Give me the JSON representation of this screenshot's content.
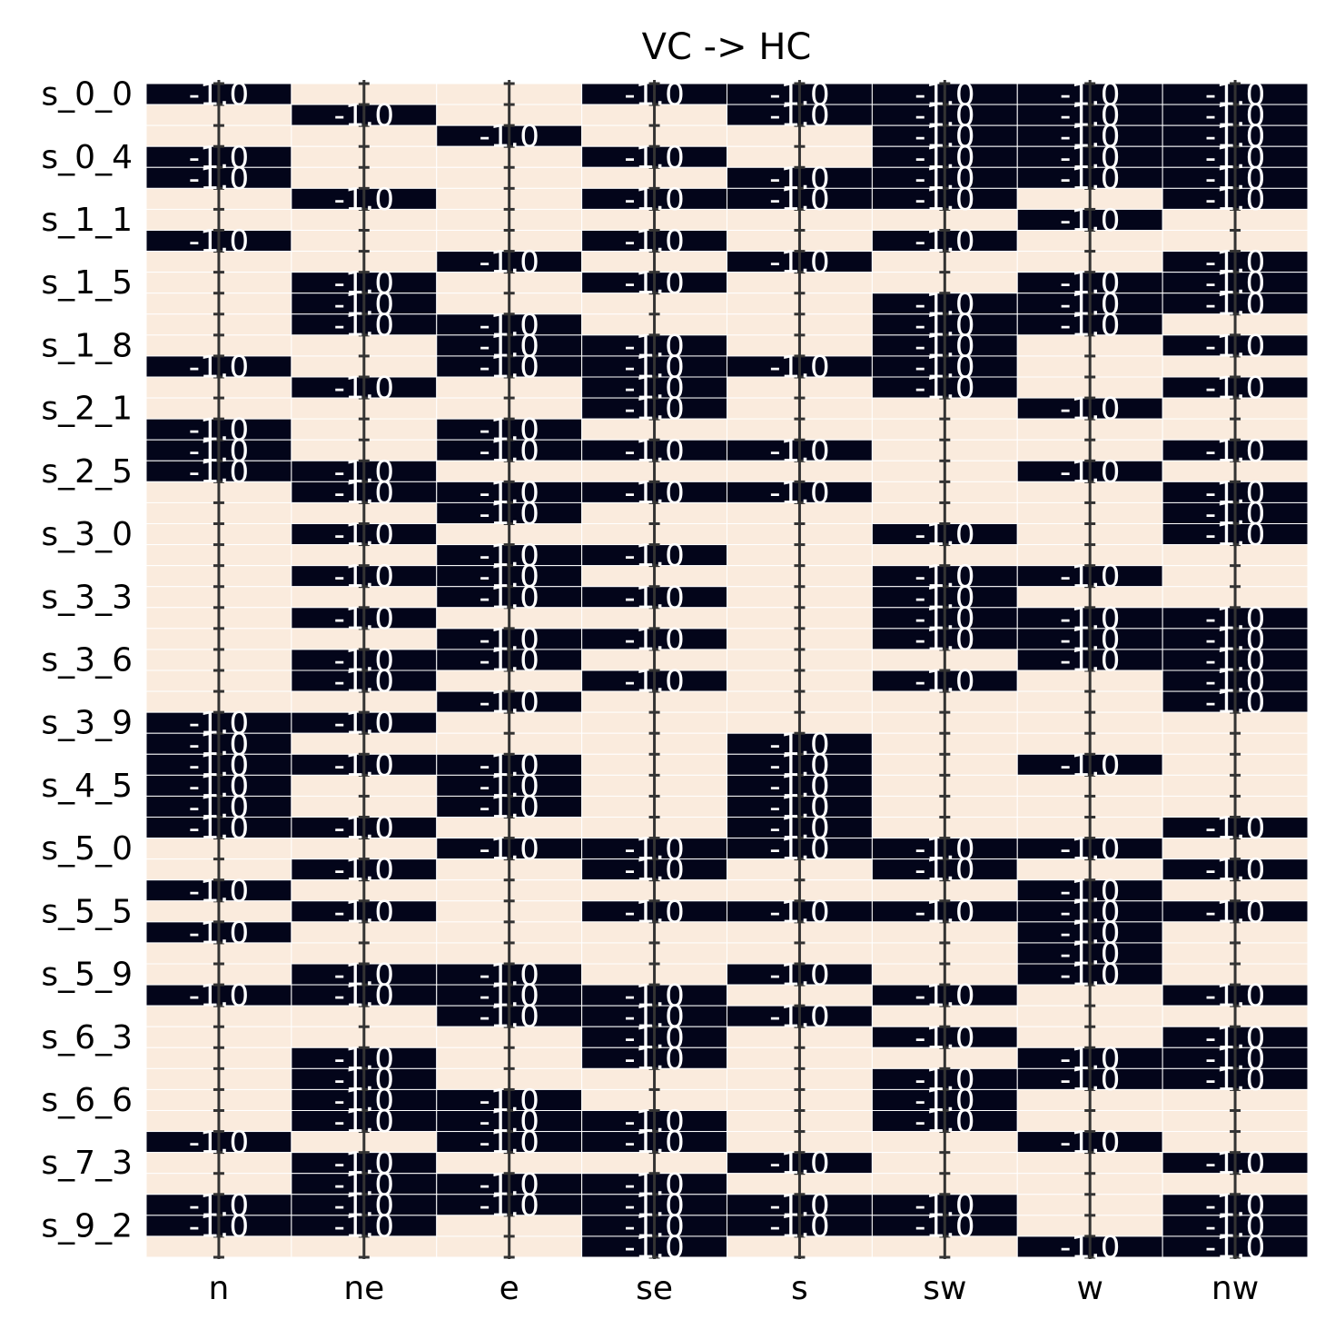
{
  "chart_data": {
    "type": "heatmap",
    "title": "VC -> HC",
    "xlabel": "",
    "ylabel": "",
    "x_categories": [
      "n",
      "ne",
      "e",
      "se",
      "s",
      "sw",
      "w",
      "nw"
    ],
    "y_tick_labels": [
      "s_0_0",
      "s_0_4",
      "s_1_1",
      "s_1_5",
      "s_1_8",
      "s_2_1",
      "s_2_5",
      "s_3_0",
      "s_3_3",
      "s_3_6",
      "s_3_9",
      "s_4_5",
      "s_5_0",
      "s_5_5",
      "s_5_9",
      "s_6_3",
      "s_6_6",
      "s_7_3",
      "s_9_2"
    ],
    "value_labels": {
      "negative": "-1.0",
      "positive": "1"
    },
    "colors": {
      "negative": "#03051a",
      "positive": "#faebdd",
      "grid": "#ffffff",
      "error_bar": "#333333"
    },
    "colorbar": false,
    "rows": [
      [
        -1,
        1,
        1,
        -1,
        -1,
        -1,
        -1,
        -1
      ],
      [
        1,
        -1,
        1,
        1,
        -1,
        -1,
        -1,
        -1
      ],
      [
        1,
        1,
        -1,
        1,
        1,
        -1,
        -1,
        -1
      ],
      [
        -1,
        1,
        1,
        -1,
        1,
        -1,
        -1,
        -1
      ],
      [
        -1,
        1,
        1,
        1,
        -1,
        -1,
        -1,
        -1
      ],
      [
        1,
        -1,
        1,
        -1,
        -1,
        -1,
        1,
        -1
      ],
      [
        1,
        1,
        1,
        1,
        1,
        1,
        -1,
        1
      ],
      [
        -1,
        1,
        1,
        -1,
        1,
        -1,
        1,
        1
      ],
      [
        1,
        1,
        -1,
        1,
        -1,
        1,
        1,
        -1
      ],
      [
        1,
        -1,
        1,
        -1,
        1,
        1,
        -1,
        -1
      ],
      [
        1,
        -1,
        1,
        1,
        1,
        -1,
        -1,
        -1
      ],
      [
        1,
        -1,
        -1,
        1,
        1,
        -1,
        -1,
        1
      ],
      [
        1,
        1,
        -1,
        -1,
        1,
        -1,
        1,
        -1
      ],
      [
        -1,
        1,
        -1,
        -1,
        -1,
        -1,
        1,
        1
      ],
      [
        1,
        -1,
        1,
        -1,
        1,
        -1,
        1,
        -1
      ],
      [
        1,
        1,
        1,
        -1,
        1,
        1,
        -1,
        1
      ],
      [
        -1,
        1,
        -1,
        1,
        1,
        1,
        1,
        1
      ],
      [
        -1,
        1,
        -1,
        -1,
        -1,
        1,
        1,
        -1
      ],
      [
        -1,
        -1,
        1,
        1,
        1,
        1,
        -1,
        1
      ],
      [
        1,
        -1,
        -1,
        -1,
        -1,
        1,
        1,
        -1
      ],
      [
        1,
        1,
        -1,
        1,
        1,
        1,
        1,
        -1
      ],
      [
        1,
        -1,
        1,
        1,
        1,
        -1,
        1,
        -1
      ],
      [
        1,
        1,
        -1,
        -1,
        1,
        1,
        1,
        1
      ],
      [
        1,
        -1,
        -1,
        1,
        1,
        -1,
        -1,
        1
      ],
      [
        1,
        1,
        -1,
        -1,
        1,
        -1,
        1,
        1
      ],
      [
        1,
        -1,
        1,
        1,
        1,
        -1,
        -1,
        -1
      ],
      [
        1,
        1,
        -1,
        -1,
        1,
        -1,
        -1,
        -1
      ],
      [
        1,
        -1,
        -1,
        1,
        1,
        1,
        -1,
        -1
      ],
      [
        1,
        -1,
        1,
        -1,
        1,
        -1,
        1,
        -1
      ],
      [
        1,
        1,
        -1,
        1,
        1,
        1,
        1,
        -1
      ],
      [
        -1,
        -1,
        1,
        1,
        1,
        1,
        1,
        1
      ],
      [
        -1,
        1,
        1,
        1,
        -1,
        1,
        1,
        1
      ],
      [
        -1,
        -1,
        -1,
        1,
        -1,
        1,
        -1,
        1
      ],
      [
        -1,
        1,
        -1,
        1,
        -1,
        1,
        1,
        1
      ],
      [
        -1,
        1,
        -1,
        1,
        -1,
        1,
        1,
        1
      ],
      [
        -1,
        -1,
        1,
        1,
        -1,
        1,
        1,
        -1
      ],
      [
        1,
        1,
        -1,
        -1,
        -1,
        -1,
        -1,
        1
      ],
      [
        1,
        -1,
        1,
        -1,
        1,
        -1,
        1,
        -1
      ],
      [
        -1,
        1,
        1,
        1,
        1,
        1,
        -1,
        1
      ],
      [
        1,
        -1,
        1,
        -1,
        -1,
        -1,
        -1,
        -1
      ],
      [
        -1,
        1,
        1,
        1,
        1,
        1,
        -1,
        1
      ],
      [
        1,
        1,
        1,
        1,
        1,
        1,
        -1,
        1
      ],
      [
        1,
        -1,
        -1,
        1,
        -1,
        1,
        -1,
        1
      ],
      [
        -1,
        -1,
        -1,
        -1,
        1,
        -1,
        1,
        -1
      ],
      [
        1,
        1,
        -1,
        -1,
        -1,
        1,
        1,
        1
      ],
      [
        1,
        1,
        1,
        -1,
        1,
        -1,
        1,
        -1
      ],
      [
        1,
        -1,
        1,
        -1,
        1,
        1,
        -1,
        -1
      ],
      [
        1,
        -1,
        1,
        1,
        1,
        -1,
        -1,
        -1
      ],
      [
        1,
        -1,
        -1,
        1,
        1,
        -1,
        1,
        1
      ],
      [
        1,
        -1,
        -1,
        -1,
        1,
        -1,
        1,
        1
      ],
      [
        -1,
        1,
        -1,
        -1,
        1,
        1,
        -1,
        1
      ],
      [
        1,
        -1,
        1,
        1,
        -1,
        1,
        1,
        -1
      ],
      [
        1,
        -1,
        -1,
        -1,
        1,
        1,
        1,
        1
      ],
      [
        -1,
        -1,
        -1,
        -1,
        -1,
        -1,
        1,
        -1
      ],
      [
        -1,
        -1,
        1,
        -1,
        -1,
        -1,
        1,
        -1
      ],
      [
        1,
        1,
        1,
        -1,
        1,
        1,
        -1,
        -1
      ]
    ]
  }
}
